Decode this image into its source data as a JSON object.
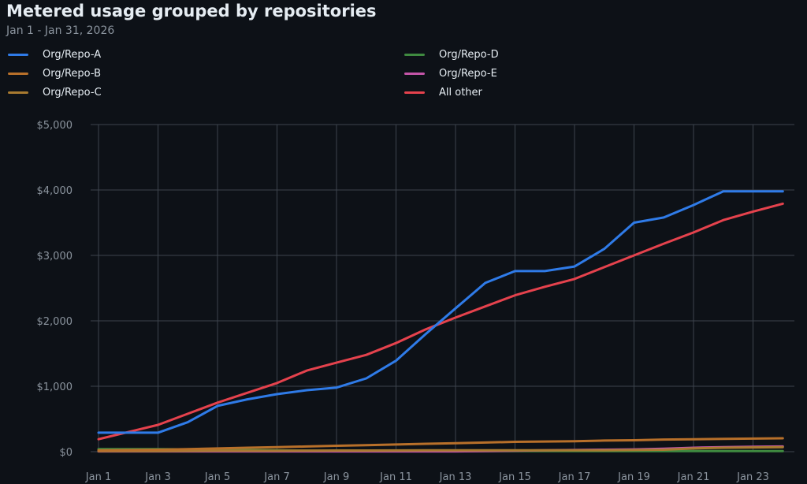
{
  "chart_data": {
    "type": "line",
    "title": "Metered usage grouped by repositories",
    "subtitle": "Jan 1 - Jan 31, 2026",
    "x": [
      "Jan 1",
      "Jan 2",
      "Jan 3",
      "Jan 4",
      "Jan 5",
      "Jan 6",
      "Jan 7",
      "Jan 8",
      "Jan 9",
      "Jan 10",
      "Jan 11",
      "Jan 12",
      "Jan 13",
      "Jan 14",
      "Jan 15",
      "Jan 16",
      "Jan 17",
      "Jan 18",
      "Jan 19",
      "Jan 20",
      "Jan 21",
      "Jan 22",
      "Jan 23",
      "Jan 24"
    ],
    "x_tick_labels": [
      "Jan 1",
      "Jan 3",
      "Jan 5",
      "Jan 7",
      "Jan 9",
      "Jan 11",
      "Jan 13",
      "Jan 15",
      "Jan 17",
      "Jan 19",
      "Jan 21",
      "Jan 23"
    ],
    "y_tick_labels": [
      "$0",
      "$1,000",
      "$2,000",
      "$3,000",
      "$4,000",
      "$5,000"
    ],
    "ylim": [
      0,
      5000
    ],
    "grid": true,
    "legend_placement": "top",
    "series": [
      {
        "name": "Org/Repo-A",
        "color": "#2f7be8",
        "values": [
          290,
          290,
          290,
          450,
          700,
          800,
          880,
          940,
          980,
          1120,
          1390,
          1800,
          2190,
          2580,
          2760,
          2760,
          2830,
          3100,
          3500,
          3580,
          3770,
          3980,
          3980,
          3980
        ]
      },
      {
        "name": "Org/Repo-B",
        "color": "#b8702a",
        "values": [
          20,
          25,
          30,
          40,
          50,
          60,
          70,
          80,
          90,
          100,
          110,
          120,
          130,
          140,
          150,
          155,
          160,
          170,
          175,
          185,
          190,
          195,
          200,
          205
        ]
      },
      {
        "name": "Org/Repo-C",
        "color": "#a87a30",
        "values": [
          10,
          10,
          10,
          12,
          14,
          15,
          16,
          17,
          18,
          18,
          19,
          20,
          20,
          20,
          20,
          20,
          20,
          22,
          25,
          30,
          50,
          60,
          65,
          70
        ]
      },
      {
        "name": "Org/Repo-D",
        "color": "#3f8a40",
        "values": [
          40,
          40,
          40,
          35,
          30,
          25,
          20,
          15,
          10,
          10,
          10,
          10,
          10,
          10,
          10,
          10,
          10,
          10,
          10,
          10,
          10,
          10,
          10,
          10
        ]
      },
      {
        "name": "Org/Repo-E",
        "color": "#c455a8",
        "values": [
          5,
          5,
          5,
          5,
          5,
          5,
          5,
          5,
          5,
          5,
          5,
          5,
          5,
          10,
          15,
          20,
          25,
          30,
          35,
          45,
          60,
          70,
          75,
          80
        ]
      },
      {
        "name": "All other",
        "color": "#e5424d",
        "values": [
          190,
          300,
          410,
          580,
          750,
          900,
          1050,
          1240,
          1360,
          1480,
          1660,
          1870,
          2050,
          2220,
          2390,
          2520,
          2640,
          2820,
          3000,
          3180,
          3350,
          3540,
          3670,
          3790
        ]
      }
    ]
  },
  "colors": {
    "background": "#0d1117",
    "grid": "#3d444d",
    "text": "#e6edf3",
    "muted": "#8b949e"
  }
}
